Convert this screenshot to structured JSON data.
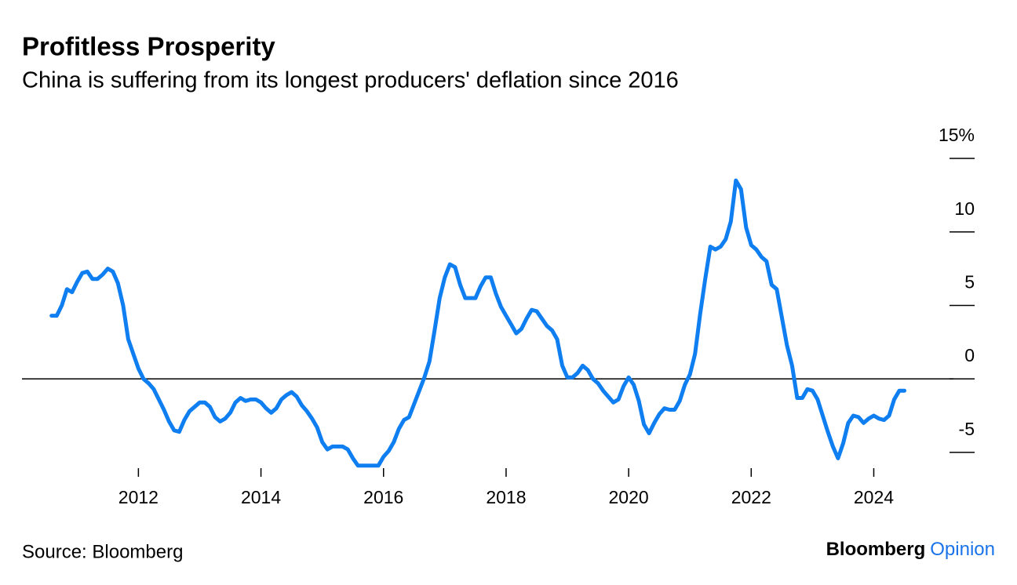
{
  "chart_data": {
    "type": "line",
    "title": "Profitless Prosperity",
    "subtitle": "China is suffering from its longest producers' deflation since 2016",
    "x": [
      "2010-08",
      "2010-09",
      "2010-10",
      "2010-11",
      "2010-12",
      "2011-01",
      "2011-02",
      "2011-03",
      "2011-04",
      "2011-05",
      "2011-06",
      "2011-07",
      "2011-08",
      "2011-09",
      "2011-10",
      "2011-11",
      "2011-12",
      "2012-01",
      "2012-02",
      "2012-03",
      "2012-04",
      "2012-05",
      "2012-06",
      "2012-07",
      "2012-08",
      "2012-09",
      "2012-10",
      "2012-11",
      "2012-12",
      "2013-01",
      "2013-02",
      "2013-03",
      "2013-04",
      "2013-05",
      "2013-06",
      "2013-07",
      "2013-08",
      "2013-09",
      "2013-10",
      "2013-11",
      "2013-12",
      "2014-01",
      "2014-02",
      "2014-03",
      "2014-04",
      "2014-05",
      "2014-06",
      "2014-07",
      "2014-08",
      "2014-09",
      "2014-10",
      "2014-11",
      "2014-12",
      "2015-01",
      "2015-02",
      "2015-03",
      "2015-04",
      "2015-05",
      "2015-06",
      "2015-07",
      "2015-08",
      "2015-09",
      "2015-10",
      "2015-11",
      "2015-12",
      "2016-01",
      "2016-02",
      "2016-03",
      "2016-04",
      "2016-05",
      "2016-06",
      "2016-07",
      "2016-08",
      "2016-09",
      "2016-10",
      "2016-11",
      "2016-12",
      "2017-01",
      "2017-02",
      "2017-03",
      "2017-04",
      "2017-05",
      "2017-06",
      "2017-07",
      "2017-08",
      "2017-09",
      "2017-10",
      "2017-11",
      "2017-12",
      "2018-01",
      "2018-02",
      "2018-03",
      "2018-04",
      "2018-05",
      "2018-06",
      "2018-07",
      "2018-08",
      "2018-09",
      "2018-10",
      "2018-11",
      "2018-12",
      "2019-01",
      "2019-02",
      "2019-03",
      "2019-04",
      "2019-05",
      "2019-06",
      "2019-07",
      "2019-08",
      "2019-09",
      "2019-10",
      "2019-11",
      "2019-12",
      "2020-01",
      "2020-02",
      "2020-03",
      "2020-04",
      "2020-05",
      "2020-06",
      "2020-07",
      "2020-08",
      "2020-09",
      "2020-10",
      "2020-11",
      "2020-12",
      "2021-01",
      "2021-02",
      "2021-03",
      "2021-04",
      "2021-05",
      "2021-06",
      "2021-07",
      "2021-08",
      "2021-09",
      "2021-10",
      "2021-11",
      "2021-12",
      "2022-01",
      "2022-02",
      "2022-03",
      "2022-04",
      "2022-05",
      "2022-06",
      "2022-07",
      "2022-08",
      "2022-09",
      "2022-10",
      "2022-11",
      "2022-12",
      "2023-01",
      "2023-02",
      "2023-03",
      "2023-04",
      "2023-05",
      "2023-06",
      "2023-07",
      "2023-08",
      "2023-09",
      "2023-10",
      "2023-11",
      "2023-12",
      "2024-01",
      "2024-02",
      "2024-03",
      "2024-04",
      "2024-05",
      "2024-06",
      "2024-07"
    ],
    "values": [
      4.3,
      4.3,
      5.0,
      6.1,
      5.9,
      6.6,
      7.2,
      7.3,
      6.8,
      6.8,
      7.1,
      7.5,
      7.3,
      6.5,
      5.0,
      2.7,
      1.7,
      0.7,
      0.0,
      -0.3,
      -0.7,
      -1.4,
      -2.1,
      -2.9,
      -3.5,
      -3.6,
      -2.8,
      -2.2,
      -1.9,
      -1.6,
      -1.6,
      -1.9,
      -2.6,
      -2.9,
      -2.7,
      -2.3,
      -1.6,
      -1.3,
      -1.5,
      -1.4,
      -1.4,
      -1.6,
      -2.0,
      -2.3,
      -2.0,
      -1.4,
      -1.1,
      -0.9,
      -1.2,
      -1.8,
      -2.2,
      -2.7,
      -3.3,
      -4.3,
      -4.8,
      -4.6,
      -4.6,
      -4.6,
      -4.8,
      -5.4,
      -5.9,
      -5.9,
      -5.9,
      -5.9,
      -5.9,
      -5.3,
      -4.9,
      -4.3,
      -3.4,
      -2.8,
      -2.6,
      -1.7,
      -0.8,
      0.1,
      1.2,
      3.3,
      5.5,
      6.9,
      7.8,
      7.6,
      6.4,
      5.5,
      5.5,
      5.5,
      6.3,
      6.9,
      6.9,
      5.8,
      4.9,
      4.3,
      3.7,
      3.1,
      3.4,
      4.1,
      4.7,
      4.6,
      4.1,
      3.6,
      3.3,
      2.7,
      0.9,
      0.1,
      0.1,
      0.4,
      0.9,
      0.6,
      0.0,
      -0.3,
      -0.8,
      -1.2,
      -1.6,
      -1.4,
      -0.5,
      0.1,
      -0.4,
      -1.5,
      -3.1,
      -3.7,
      -3.0,
      -2.4,
      -2.0,
      -2.1,
      -2.1,
      -1.5,
      -0.4,
      0.3,
      1.7,
      4.4,
      6.8,
      9.0,
      8.8,
      9.0,
      9.5,
      10.7,
      13.5,
      12.9,
      10.3,
      9.1,
      8.8,
      8.3,
      8.0,
      6.4,
      6.1,
      4.2,
      2.3,
      0.9,
      -1.3,
      -1.3,
      -0.7,
      -0.8,
      -1.4,
      -2.5,
      -3.6,
      -4.6,
      -5.4,
      -4.4,
      -3.0,
      -2.5,
      -2.6,
      -3.0,
      -2.7,
      -2.5,
      -2.7,
      -2.8,
      -2.5,
      -1.4,
      -0.8,
      -0.8
    ],
    "color": "#0f7ef0",
    "xlim": [
      2010.1,
      2025.3
    ],
    "xticks": [
      2012,
      2014,
      2016,
      2018,
      2020,
      2022,
      2024
    ],
    "ylim": [
      -6.5,
      15
    ],
    "yticks": [
      {
        "value": 15,
        "label": "15%"
      },
      10,
      5,
      0,
      -5
    ],
    "grid": false
  },
  "source": "Source: Bloomberg",
  "logo": {
    "name": "Bloomberg",
    "section": "Opinion"
  }
}
